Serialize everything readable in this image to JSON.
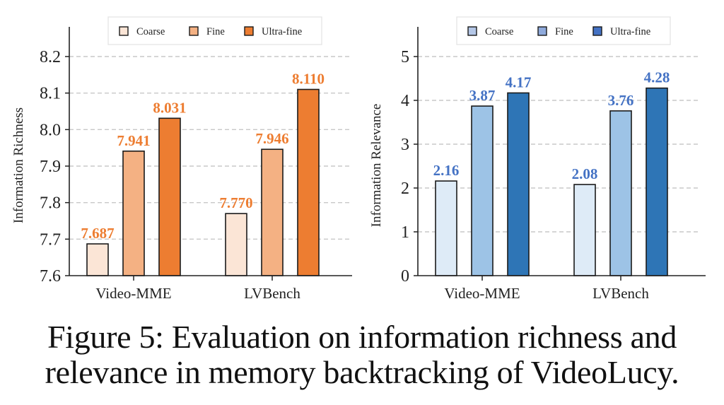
{
  "caption": {
    "line1": "Figure 5: Evaluation on information richness and",
    "line2": "relevance in memory backtracking of VideoLucy."
  },
  "chart_data": [
    {
      "type": "bar",
      "title": "",
      "xlabel": "",
      "ylabel": "Information Richness",
      "categories": [
        "Video-MME",
        "LVBench"
      ],
      "ylim": [
        7.6,
        8.27
      ],
      "yticks": [
        7.6,
        7.7,
        7.8,
        7.9,
        8.0,
        8.1,
        8.2
      ],
      "ytick_labels": [
        "7.6",
        "7.7",
        "7.8",
        "7.9",
        "8.0",
        "8.1",
        "8.2"
      ],
      "grid": "horizontal-dashed",
      "legend_position": "top-center",
      "label_color": "#ed7d31",
      "series": [
        {
          "name": "Coarse",
          "values": [
            7.687,
            7.77
          ],
          "labels": [
            "7.687",
            "7.770"
          ],
          "color": "#fbe5d6",
          "legend_color": "#fbe5d6"
        },
        {
          "name": "Fine",
          "values": [
            7.941,
            7.946
          ],
          "labels": [
            "7.941",
            "7.946"
          ],
          "color": "#f4b183",
          "legend_color": "#f4b183"
        },
        {
          "name": "Ultra-fine",
          "values": [
            8.031,
            8.11
          ],
          "labels": [
            "8.031",
            "8.110"
          ],
          "color": "#ed7d31",
          "legend_color": "#ed7d31"
        }
      ]
    },
    {
      "type": "bar",
      "title": "",
      "xlabel": "",
      "ylabel": "Information Relevance",
      "categories": [
        "Video-MME",
        "LVBench"
      ],
      "ylim": [
        0,
        5.7
      ],
      "yticks": [
        0,
        1,
        2,
        3,
        4,
        5
      ],
      "ytick_labels": [
        "0",
        "1",
        "2",
        "3",
        "4",
        "5"
      ],
      "grid": "horizontal-dashed",
      "legend_position": "top-center",
      "label_color": "#4472c4",
      "series": [
        {
          "name": "Coarse",
          "values": [
            2.16,
            2.08
          ],
          "labels": [
            "2.16",
            "2.08"
          ],
          "color": "#deebf7",
          "legend_color": "#b4c7e7"
        },
        {
          "name": "Fine",
          "values": [
            3.87,
            3.76
          ],
          "labels": [
            "3.87",
            "3.76"
          ],
          "color": "#9dc3e6",
          "legend_color": "#8faadc"
        },
        {
          "name": "Ultra-fine",
          "values": [
            4.17,
            4.28
          ],
          "labels": [
            "4.17",
            "4.28"
          ],
          "color": "#2e75b6",
          "legend_color": "#4472c4"
        }
      ]
    }
  ]
}
